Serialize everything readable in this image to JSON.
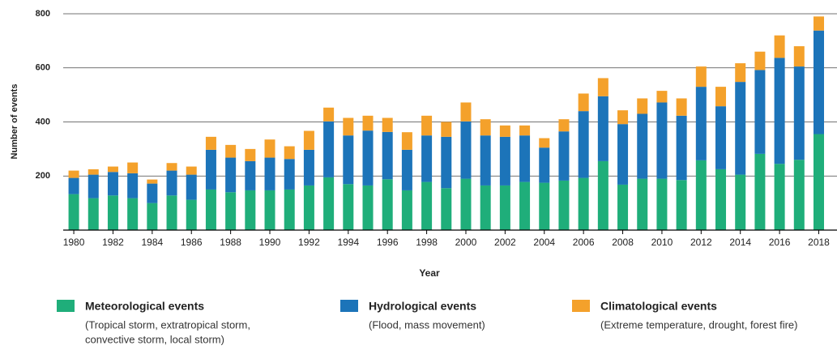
{
  "chart_data": {
    "type": "stacked_bar",
    "x": [
      1980,
      1981,
      1982,
      1983,
      1984,
      1985,
      1986,
      1987,
      1988,
      1989,
      1990,
      1991,
      1992,
      1993,
      1994,
      1995,
      1996,
      1997,
      1998,
      1999,
      2000,
      2001,
      2002,
      2003,
      2004,
      2005,
      2006,
      2007,
      2008,
      2009,
      2010,
      2011,
      2012,
      2013,
      2014,
      2015,
      2016,
      2017,
      2018
    ],
    "series": [
      {
        "name": "Meteorological events",
        "description": [
          "(Tropical storm, extratropical storm,",
          "convective storm, local storm)"
        ],
        "color": "#1fae7a",
        "values": [
          133,
          118,
          128,
          118,
          100,
          128,
          112,
          150,
          140,
          147,
          147,
          150,
          165,
          195,
          170,
          165,
          188,
          147,
          178,
          155,
          190,
          165,
          165,
          178,
          175,
          183,
          193,
          255,
          168,
          190,
          190,
          185,
          258,
          225,
          205,
          282,
          245,
          260,
          355
        ]
      },
      {
        "name": "Hydrological events",
        "description": [
          "(Flood, mass movement)"
        ],
        "color": "#1c74b9",
        "values": [
          60,
          87,
          87,
          92,
          72,
          92,
          93,
          147,
          128,
          108,
          121,
          113,
          132,
          207,
          180,
          203,
          175,
          150,
          172,
          190,
          212,
          185,
          180,
          172,
          130,
          182,
          247,
          240,
          224,
          240,
          282,
          238,
          272,
          233,
          343,
          310,
          392,
          345,
          383
        ]
      },
      {
        "name": "Climatological events",
        "description": [
          "(Extreme temperature, drought, forest fire)"
        ],
        "color": "#f4a12b",
        "values": [
          27,
          20,
          20,
          40,
          15,
          28,
          30,
          48,
          47,
          45,
          67,
          47,
          70,
          51,
          65,
          55,
          52,
          65,
          73,
          55,
          70,
          60,
          42,
          37,
          35,
          45,
          65,
          67,
          51,
          57,
          43,
          64,
          75,
          72,
          69,
          68,
          83,
          75,
          52
        ]
      }
    ],
    "xlabel": "Year",
    "ylabel": "Number of events",
    "xlim": [
      1979.46,
      2018.93
    ],
    "xticks": [
      1980,
      1982,
      1984,
      1986,
      1988,
      1990,
      1992,
      1994,
      1996,
      1998,
      2000,
      2002,
      2004,
      2006,
      2008,
      2010,
      2012,
      2014,
      2016,
      2018
    ],
    "ylim": [
      0,
      800
    ],
    "yticks": [
      200,
      400,
      600,
      800
    ],
    "grid": true
  }
}
